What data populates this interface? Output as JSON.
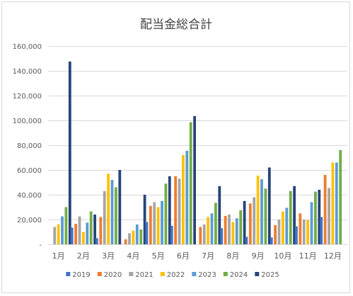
{
  "chart_data": {
    "type": "bar",
    "title": "配当金総合計",
    "xlabel": "",
    "ylabel": "",
    "ylim": [
      0,
      160000
    ],
    "y_ticks": [
      "-",
      "20,000",
      "40,000",
      "60,000",
      "80,000",
      "100,000",
      "120,000",
      "140,000",
      "160,000"
    ],
    "grid": true,
    "legend_position": "bottom",
    "categories": [
      "1月",
      "2月",
      "3月",
      "4月",
      "5月",
      "6月",
      "7月",
      "8月",
      "9月",
      "10月",
      "11月",
      "12月"
    ],
    "series": [
      {
        "name": "2019",
        "color": "#4472C4",
        "values": [
          0,
          13500,
          5000,
          0,
          18000,
          15000,
          0,
          13000,
          6000,
          5500,
          14500,
          22000
        ]
      },
      {
        "name": "2020",
        "color": "#ED7D31",
        "values": [
          0,
          16500,
          22000,
          4000,
          31000,
          55000,
          14000,
          23000,
          33000,
          15500,
          25000,
          56000
        ]
      },
      {
        "name": "2021",
        "color": "#A5A5A5",
        "values": [
          14000,
          22500,
          43000,
          9000,
          34000,
          53000,
          16000,
          24000,
          38000,
          20000,
          20000,
          45500
        ]
      },
      {
        "name": "2022",
        "color": "#FFC000",
        "values": [
          16000,
          10000,
          57000,
          11000,
          30000,
          72000,
          22000,
          18000,
          55500,
          26500,
          19500,
          66000
        ]
      },
      {
        "name": "2023",
        "color": "#5B9BD5",
        "values": [
          22500,
          17500,
          52000,
          16000,
          35000,
          75500,
          25000,
          21000,
          52500,
          29500,
          34000,
          66000
        ]
      },
      {
        "name": "2024",
        "color": "#70AD47",
        "values": [
          30000,
          26500,
          46000,
          12000,
          49000,
          98500,
          33500,
          27500,
          45000,
          43000,
          42500,
          76000
        ]
      },
      {
        "name": "2025",
        "color": "#264478",
        "values": [
          147500,
          24000,
          60000,
          40000,
          55000,
          103500,
          47000,
          35000,
          62000,
          47000,
          44000,
          0
        ]
      }
    ]
  }
}
